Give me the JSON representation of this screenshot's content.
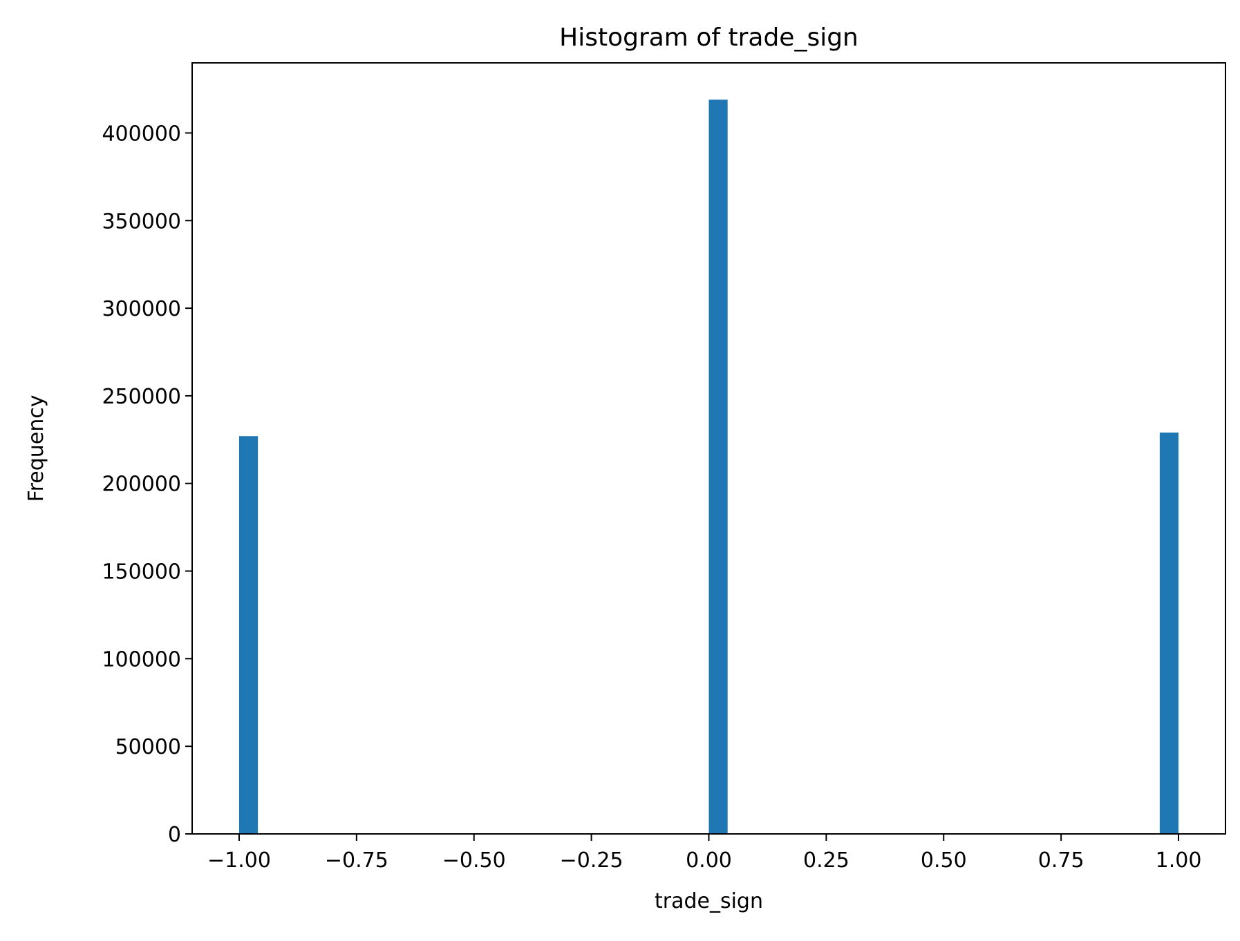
{
  "chart_data": {
    "type": "bar",
    "subtype": "histogram",
    "title": "Histogram of trade_sign",
    "xlabel": "trade_sign",
    "ylabel": "Frequency",
    "bar_color": "#1f77b4",
    "bin_width": 0.04,
    "bins": [
      {
        "start": -1.0,
        "end": -0.96,
        "count": 227000
      },
      {
        "start": 0.0,
        "end": 0.04,
        "count": 419000
      },
      {
        "start": 0.96,
        "end": 1.0,
        "count": 229000
      }
    ],
    "xlim": [
      -1.1,
      1.1
    ],
    "ylim": [
      0,
      440000
    ],
    "xticks": [
      -1.0,
      -0.75,
      -0.5,
      -0.25,
      0.0,
      0.25,
      0.5,
      0.75,
      1.0
    ],
    "xtick_labels": [
      "−1.00",
      "−0.75",
      "−0.50",
      "−0.25",
      "0.00",
      "0.25",
      "0.50",
      "0.75",
      "1.00"
    ],
    "yticks": [
      0,
      50000,
      100000,
      150000,
      200000,
      250000,
      300000,
      350000,
      400000
    ],
    "ytick_labels": [
      "0",
      "50000",
      "100000",
      "150000",
      "200000",
      "250000",
      "300000",
      "350000",
      "400000"
    ],
    "grid": false,
    "legend": false
  }
}
